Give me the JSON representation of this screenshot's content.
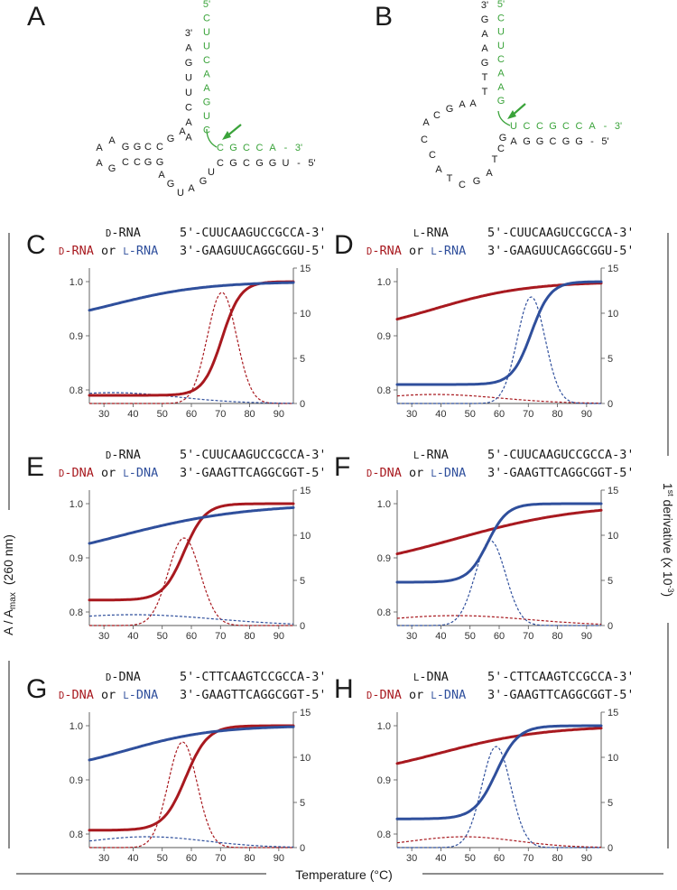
{
  "figure": {
    "y_axis_label": "A / A",
    "y_axis_sub": "max",
    "y_axis_unit": "(260 nm)",
    "right_axis_label": "1",
    "right_axis_sup": "st",
    "right_axis_rest": " derivative (x 10",
    "right_axis_exp": "-3",
    "right_axis_close": ")",
    "x_axis_label": "Temperature (°C)",
    "colors": {
      "red": "#a8191f",
      "blue": "#2f4f9c",
      "green": "#3aa33a",
      "black": "#1a1a1a"
    }
  },
  "structures": {
    "A": {
      "label": "A",
      "green_top": [
        "5'",
        "C",
        "U",
        "U",
        "C",
        "A",
        "A",
        "G",
        "U",
        "C"
      ],
      "green_right": [
        "C",
        "G",
        "C",
        "C",
        "A",
        "-",
        "3'"
      ],
      "black_stem": [
        "3'",
        "A",
        "G",
        "U",
        "U",
        "C",
        "A",
        "A"
      ],
      "loop_top": [
        "A",
        "A",
        "G",
        "G",
        "C",
        "C",
        "G",
        "A"
      ],
      "loop_bottom": [
        "A",
        "G",
        "C",
        "C",
        "G",
        "G",
        "A",
        "G",
        "U",
        "A",
        "G",
        "U"
      ],
      "bottom_right": [
        "C",
        "G",
        "C",
        "G",
        "G",
        "U",
        "-",
        "5'"
      ]
    },
    "B": {
      "label": "B",
      "black_stem": [
        "3'",
        "G",
        "A",
        "A",
        "G",
        "T",
        "T"
      ],
      "green_top": [
        "5'",
        "C",
        "U",
        "U",
        "C",
        "A",
        "A",
        "G"
      ],
      "green_right": [
        "U",
        "C",
        "C",
        "G",
        "C",
        "C",
        "A",
        "-",
        "3'"
      ],
      "loop": [
        "A",
        "C",
        "G",
        "A",
        "A",
        "C",
        "C",
        "A",
        "T",
        "C",
        "G",
        "A",
        "T",
        "C",
        "G"
      ],
      "bottom_right": [
        "A",
        "G",
        "G",
        "C",
        "G",
        "G",
        "-",
        "5'"
      ]
    }
  },
  "panel_text": [
    {
      "label": "C",
      "line1_prefix": "D",
      "line1_name": "-RNA",
      "line1_seq": "5'-CUUCAAGUCCGCCA-3'",
      "red_prefix": "D",
      "red_name": "-RNA",
      "or": " or ",
      "blue_prefix": "L",
      "blue_name": "-RNA",
      "line2_seq": "3'-GAAGUUCAGGCGGU-5'"
    },
    {
      "label": "D",
      "line1_prefix": "L",
      "line1_name": "-RNA",
      "line1_seq": "5'-CUUCAAGUCCGCCA-3'",
      "red_prefix": "D",
      "red_name": "-RNA",
      "or": " or ",
      "blue_prefix": "L",
      "blue_name": "-RNA",
      "line2_seq": "3'-GAAGUUCAGGCGGU-5'"
    },
    {
      "label": "E",
      "line1_prefix": "D",
      "line1_name": "-RNA",
      "line1_seq": "5'-CUUCAAGUCCGCCA-3'",
      "red_prefix": "D",
      "red_name": "-DNA",
      "or": " or ",
      "blue_prefix": "L",
      "blue_name": "-DNA",
      "line2_seq": "3'-GAAGTTCAGGCGGT-5'"
    },
    {
      "label": "F",
      "line1_prefix": "L",
      "line1_name": "-RNA",
      "line1_seq": "5'-CUUCAAGUCCGCCA-3'",
      "red_prefix": "D",
      "red_name": "-DNA",
      "or": " or ",
      "blue_prefix": "L",
      "blue_name": "-DNA",
      "line2_seq": "3'-GAAGTTCAGGCGGT-5'"
    },
    {
      "label": "G",
      "line1_prefix": "D",
      "line1_name": "-DNA",
      "line1_seq": "5'-CTTCAAGTCCGCCA-3'",
      "red_prefix": "D",
      "red_name": "-DNA",
      "or": " or ",
      "blue_prefix": "L",
      "blue_name": "-DNA",
      "line2_seq": "3'-GAAGTTCAGGCGGT-5'"
    },
    {
      "label": "H",
      "line1_prefix": "L",
      "line1_name": "-DNA",
      "line1_seq": "5'-CTTCAAGTCCGCCA-3'",
      "red_prefix": "D",
      "red_name": "-DNA",
      "or": " or ",
      "blue_prefix": "L",
      "blue_name": "-DNA",
      "line2_seq": "3'-GAAGTTCAGGCGGT-5'"
    }
  ],
  "chart_data": [
    {
      "panel": "C",
      "type": "line",
      "xlim": [
        25,
        95
      ],
      "ylim": [
        0.775,
        1.025
      ],
      "y2lim": [
        0,
        15
      ],
      "xticks": [
        30,
        40,
        50,
        60,
        70,
        80,
        90
      ],
      "yticks": [
        0.8,
        0.9,
        1.0
      ],
      "y2ticks": [
        0,
        5,
        10,
        15
      ],
      "series": [
        {
          "name": "D-RNA/D-RNA melting",
          "color": "red",
          "style": "solid",
          "model": "sigmoid",
          "base": 0.79,
          "top": 1.0,
          "tm": 70.5,
          "width": 3.2,
          "x": [
            25,
            40,
            55,
            60,
            65,
            70,
            75,
            80,
            85,
            95
          ],
          "values": [
            0.79,
            0.79,
            0.79,
            0.797,
            0.83,
            0.89,
            0.965,
            0.99,
            0.998,
            1.0
          ]
        },
        {
          "name": "D-RNA/L-RNA melting",
          "color": "blue",
          "style": "solid",
          "model": "sigmoid",
          "base": 0.915,
          "top": 1.0,
          "tm": 33,
          "width": 16,
          "x": [
            25,
            40,
            60,
            80,
            95
          ],
          "values": [
            0.948,
            0.97,
            0.99,
            0.998,
            1.0
          ]
        },
        {
          "name": "D-RNA/D-RNA derivative",
          "color": "red",
          "style": "dashed",
          "model": "gauss",
          "peak": 12.3,
          "center": 70.5,
          "sigma": 5.0,
          "x": [
            55,
            60,
            65,
            70.5,
            75,
            80,
            85
          ],
          "values": [
            0.4,
            2.2,
            6.3,
            12.3,
            8.1,
            2.9,
            0.4
          ]
        },
        {
          "name": "D-RNA/L-RNA derivative",
          "color": "blue",
          "style": "dashed",
          "model": "gauss",
          "peak": 1.2,
          "center": 33,
          "sigma": 22,
          "x": [
            25,
            40,
            60,
            80,
            95
          ],
          "values": [
            1.1,
            1.1,
            0.6,
            0.1,
            0.0
          ]
        }
      ]
    },
    {
      "panel": "D",
      "type": "line",
      "xlim": [
        25,
        95
      ],
      "ylim": [
        0.775,
        1.025
      ],
      "y2lim": [
        0,
        15
      ],
      "xticks": [
        30,
        40,
        50,
        60,
        70,
        80,
        90
      ],
      "yticks": [
        0.8,
        0.9,
        1.0
      ],
      "y2ticks": [
        0,
        5,
        10,
        15
      ],
      "series": [
        {
          "name": "L-RNA/D-RNA melting",
          "color": "red",
          "style": "solid",
          "model": "sigmoid",
          "base": 0.9,
          "top": 1.0,
          "tm": 38,
          "width": 16,
          "x": [
            25,
            40,
            60,
            80,
            95
          ],
          "values": [
            0.94,
            0.965,
            0.985,
            0.997,
            1.0
          ]
        },
        {
          "name": "L-RNA/L-RNA melting",
          "color": "blue",
          "style": "solid",
          "model": "sigmoid",
          "base": 0.81,
          "top": 1.0,
          "tm": 71,
          "width": 3.3,
          "x": [
            25,
            50,
            60,
            65,
            70,
            75,
            80,
            95
          ],
          "values": [
            0.81,
            0.81,
            0.815,
            0.84,
            0.89,
            0.965,
            0.99,
            1.0
          ]
        },
        {
          "name": "L-RNA/D-RNA derivative",
          "color": "red",
          "style": "dashed",
          "model": "gauss",
          "peak": 1.0,
          "center": 38,
          "sigma": 22,
          "x": [
            25,
            40,
            60,
            80,
            95
          ],
          "values": [
            0.9,
            1.0,
            0.6,
            0.2,
            0.0
          ]
        },
        {
          "name": "L-RNA/L-RNA derivative",
          "color": "blue",
          "style": "dashed",
          "model": "gauss",
          "peak": 11.8,
          "center": 71,
          "sigma": 4.8,
          "x": [
            57,
            62,
            66,
            71,
            76,
            80,
            85
          ],
          "values": [
            0.4,
            2.2,
            6.0,
            11.8,
            7.5,
            2.5,
            0.3
          ]
        }
      ]
    },
    {
      "panel": "E",
      "type": "line",
      "xlim": [
        25,
        95
      ],
      "ylim": [
        0.775,
        1.025
      ],
      "y2lim": [
        0,
        15
      ],
      "xticks": [
        30,
        40,
        50,
        60,
        70,
        80,
        90
      ],
      "yticks": [
        0.8,
        0.9,
        1.0
      ],
      "y2ticks": [
        0,
        5,
        10,
        15
      ],
      "series": [
        {
          "name": "D-RNA/D-DNA melting",
          "color": "red",
          "style": "solid",
          "model": "sigmoid",
          "base": 0.822,
          "top": 1.0,
          "tm": 57.5,
          "width": 3.6,
          "x": [
            25,
            40,
            50,
            55,
            58,
            62,
            65,
            70,
            80,
            95
          ],
          "values": [
            0.822,
            0.822,
            0.832,
            0.87,
            0.91,
            0.965,
            0.985,
            0.996,
            1.0,
            1.0
          ]
        },
        {
          "name": "D-RNA/L-DNA melting",
          "color": "blue",
          "style": "solid",
          "model": "sigmoid",
          "base": 0.88,
          "top": 1.0,
          "tm": 35,
          "width": 22,
          "x": [
            25,
            40,
            60,
            80,
            95
          ],
          "values": [
            0.925,
            0.95,
            0.97,
            0.985,
            0.992
          ]
        },
        {
          "name": "D-RNA/D-DNA derivative",
          "color": "red",
          "style": "dashed",
          "model": "gauss",
          "peak": 9.7,
          "center": 57.5,
          "sigma": 5.5,
          "x": [
            42,
            48,
            52,
            57.5,
            63,
            67,
            72
          ],
          "values": [
            0.4,
            2.2,
            5.9,
            9.7,
            6.0,
            2.2,
            0.3
          ]
        },
        {
          "name": "D-RNA/L-DNA derivative",
          "color": "blue",
          "style": "dashed",
          "model": "gauss",
          "peak": 1.2,
          "center": 40,
          "sigma": 28,
          "x": [
            25,
            40,
            60,
            80,
            95
          ],
          "values": [
            1.1,
            1.2,
            0.9,
            0.5,
            0.2
          ]
        }
      ]
    },
    {
      "panel": "F",
      "type": "line",
      "xlim": [
        25,
        95
      ],
      "ylim": [
        0.775,
        1.025
      ],
      "y2lim": [
        0,
        15
      ],
      "xticks": [
        30,
        40,
        50,
        60,
        70,
        80,
        90
      ],
      "yticks": [
        0.8,
        0.9,
        1.0
      ],
      "y2ticks": [
        0,
        5,
        10,
        15
      ],
      "series": [
        {
          "name": "L-RNA/D-DNA melting",
          "color": "red",
          "style": "solid",
          "model": "sigmoid",
          "base": 0.87,
          "top": 1.0,
          "tm": 45,
          "width": 22,
          "x": [
            25,
            40,
            60,
            80,
            95
          ],
          "values": [
            0.915,
            0.935,
            0.958,
            0.975,
            0.985
          ]
        },
        {
          "name": "L-RNA/L-DNA melting",
          "color": "blue",
          "style": "solid",
          "model": "sigmoid",
          "base": 0.855,
          "top": 1.0,
          "tm": 56,
          "width": 3.4,
          "x": [
            25,
            45,
            50,
            55,
            60,
            65,
            70,
            95
          ],
          "values": [
            0.855,
            0.856,
            0.865,
            0.92,
            0.975,
            0.993,
            0.998,
            1.0
          ]
        },
        {
          "name": "L-RNA/D-DNA derivative",
          "color": "red",
          "style": "dashed",
          "model": "gauss",
          "peak": 1.1,
          "center": 45,
          "sigma": 25,
          "x": [
            25,
            40,
            60,
            80,
            95
          ],
          "values": [
            0.8,
            1.1,
            0.9,
            0.5,
            0.2
          ]
        },
        {
          "name": "L-RNA/L-DNA derivative",
          "color": "blue",
          "style": "dashed",
          "model": "gauss",
          "peak": 9.4,
          "center": 57,
          "sigma": 5.2,
          "x": [
            43,
            48,
            52,
            57,
            62,
            66,
            71
          ],
          "values": [
            0.4,
            2.1,
            5.7,
            9.4,
            5.7,
            2.1,
            0.3
          ]
        }
      ]
    },
    {
      "panel": "G",
      "type": "line",
      "xlim": [
        25,
        95
      ],
      "ylim": [
        0.775,
        1.025
      ],
      "y2lim": [
        0,
        15
      ],
      "xticks": [
        30,
        40,
        50,
        60,
        70,
        80,
        90
      ],
      "yticks": [
        0.8,
        0.9,
        1.0
      ],
      "y2ticks": [
        0,
        5,
        10,
        15
      ],
      "series": [
        {
          "name": "D-DNA/D-DNA melting",
          "color": "red",
          "style": "solid",
          "model": "sigmoid",
          "base": 0.807,
          "top": 1.0,
          "tm": 58,
          "width": 3.8,
          "x": [
            25,
            45,
            50,
            55,
            58,
            62,
            65,
            70,
            80,
            95
          ],
          "values": [
            0.807,
            0.809,
            0.825,
            0.87,
            0.905,
            0.955,
            0.978,
            0.993,
            1.0,
            1.0
          ]
        },
        {
          "name": "D-DNA/L-DNA melting",
          "color": "blue",
          "style": "solid",
          "model": "sigmoid",
          "base": 0.91,
          "top": 1.0,
          "tm": 38,
          "width": 15,
          "x": [
            25,
            40,
            60,
            80,
            95
          ],
          "values": [
            0.95,
            0.965,
            0.985,
            0.997,
            1.0
          ]
        },
        {
          "name": "D-DNA/D-DNA derivative",
          "color": "red",
          "style": "dashed",
          "model": "gauss",
          "peak": 11.7,
          "center": 57,
          "sigma": 5.0,
          "x": [
            42,
            47,
            52,
            57,
            62,
            67,
            72
          ],
          "values": [
            0.3,
            1.6,
            5.6,
            11.7,
            5.6,
            1.6,
            0.3
          ]
        },
        {
          "name": "D-DNA/L-DNA derivative",
          "color": "blue",
          "style": "dashed",
          "model": "gauss",
          "peak": 1.2,
          "center": 45,
          "sigma": 20,
          "x": [
            25,
            45,
            60,
            80,
            95
          ],
          "values": [
            0.8,
            1.2,
            0.9,
            0.3,
            0.1
          ]
        }
      ]
    },
    {
      "panel": "H",
      "type": "line",
      "xlim": [
        25,
        95
      ],
      "ylim": [
        0.775,
        1.025
      ],
      "y2lim": [
        0,
        15
      ],
      "xticks": [
        30,
        40,
        50,
        60,
        70,
        80,
        90
      ],
      "yticks": [
        0.8,
        0.9,
        1.0
      ],
      "y2ticks": [
        0,
        5,
        10,
        15
      ],
      "series": [
        {
          "name": "L-DNA/D-DNA melting",
          "color": "red",
          "style": "solid",
          "model": "sigmoid",
          "base": 0.9,
          "top": 1.0,
          "tm": 40,
          "width": 18,
          "x": [
            25,
            40,
            60,
            80,
            95
          ],
          "values": [
            0.942,
            0.958,
            0.978,
            0.992,
            0.998
          ]
        },
        {
          "name": "L-DNA/L-DNA melting",
          "color": "blue",
          "style": "solid",
          "model": "sigmoid",
          "base": 0.828,
          "top": 1.0,
          "tm": 59,
          "width": 3.8,
          "x": [
            25,
            45,
            50,
            55,
            60,
            65,
            70,
            95
          ],
          "values": [
            0.828,
            0.83,
            0.84,
            0.875,
            0.93,
            0.975,
            0.993,
            1.0
          ]
        },
        {
          "name": "L-DNA/D-DNA derivative",
          "color": "red",
          "style": "dashed",
          "model": "gauss",
          "peak": 1.2,
          "center": 48,
          "sigma": 18,
          "x": [
            25,
            40,
            48,
            60,
            80,
            95
          ],
          "values": [
            0.6,
            1.1,
            1.2,
            0.9,
            0.3,
            0.0
          ]
        },
        {
          "name": "L-DNA/L-DNA derivative",
          "color": "blue",
          "style": "dashed",
          "model": "gauss",
          "peak": 11.2,
          "center": 59,
          "sigma": 5.0,
          "x": [
            44,
            49,
            54,
            59,
            64,
            69,
            74
          ],
          "values": [
            0.3,
            1.5,
            5.4,
            11.2,
            5.4,
            1.5,
            0.3
          ]
        }
      ]
    }
  ]
}
